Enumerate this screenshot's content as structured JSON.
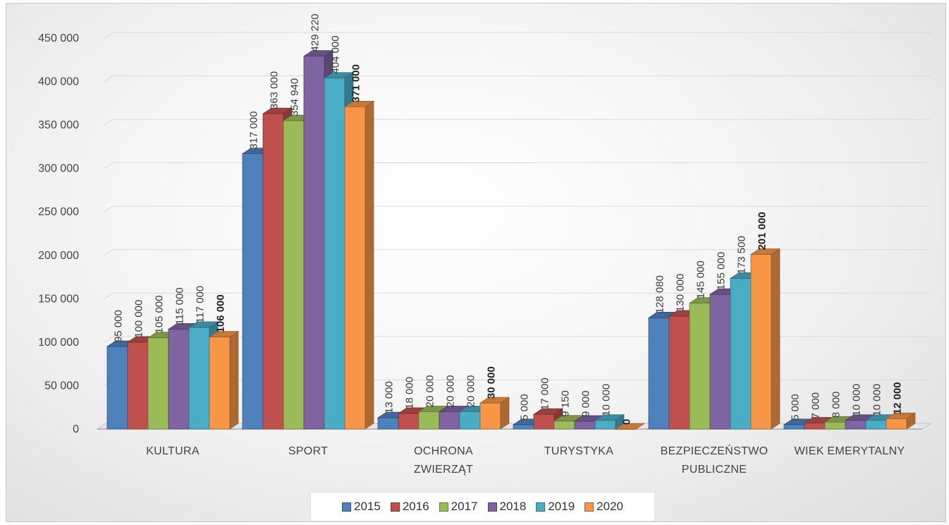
{
  "chart_data": {
    "type": "bar",
    "categories": [
      "KULTURA",
      "SPORT",
      "OCHRONA ZWIERZĄT",
      "TURYSTYKA",
      "BEZPIECZEŃSTWO PUBLICZNE",
      "WIEK EMERYTALNY"
    ],
    "category_lines": [
      [
        "KULTURA"
      ],
      [
        "SPORT"
      ],
      [
        "OCHRONA",
        "ZWIERZĄT"
      ],
      [
        "TURYSTYKA"
      ],
      [
        "BEZPIECZEŃSTWO",
        "PUBLICZNE"
      ],
      [
        "WIEK EMERYTALNY"
      ]
    ],
    "series": [
      {
        "name": "2015",
        "color": "#4f81bd",
        "values": [
          95000,
          317000,
          13000,
          5000,
          128080,
          5000
        ],
        "labels": [
          "95 000",
          "317 000",
          "13 000",
          "5 000",
          "128 080",
          "5 000"
        ]
      },
      {
        "name": "2016",
        "color": "#c0504d",
        "values": [
          100000,
          363000,
          18000,
          17000,
          130000,
          7000
        ],
        "labels": [
          "100 000",
          "363 000",
          "18 000",
          "17 000",
          "130 000",
          "7 000"
        ]
      },
      {
        "name": "2017",
        "color": "#9bbb59",
        "values": [
          105000,
          354940,
          20000,
          9150,
          145000,
          8000
        ],
        "labels": [
          "105 000",
          "354 940",
          "20 000",
          "9 150",
          "145 000",
          "8 000"
        ]
      },
      {
        "name": "2018",
        "color": "#8064a2",
        "values": [
          115000,
          429220,
          20000,
          9000,
          155000,
          10000
        ],
        "labels": [
          "115 000",
          "429 220",
          "20 000",
          "9 000",
          "155 000",
          "10 000"
        ]
      },
      {
        "name": "2019",
        "color": "#4bacc6",
        "values": [
          117000,
          404000,
          20000,
          10000,
          173500,
          10000
        ],
        "labels": [
          "117 000",
          "404 000",
          "20 000",
          "10 000",
          "173 500",
          "10 000"
        ]
      },
      {
        "name": "2020",
        "color": "#f79646",
        "values": [
          106000,
          371000,
          30000,
          0,
          201000,
          12000
        ],
        "labels": [
          "106 000",
          "371 000",
          "30 000",
          "0",
          "201 000",
          "12 000"
        ]
      }
    ],
    "ylim": [
      0,
      450000
    ],
    "yticks": [
      "0",
      "50 000",
      "100 000",
      "150 000",
      "200 000",
      "250 000",
      "300 000",
      "350 000",
      "400 000",
      "450 000"
    ],
    "title": "",
    "xlabel": "",
    "ylabel": "",
    "grid": true,
    "legend_position": "bottom",
    "style": "3d-bar"
  }
}
